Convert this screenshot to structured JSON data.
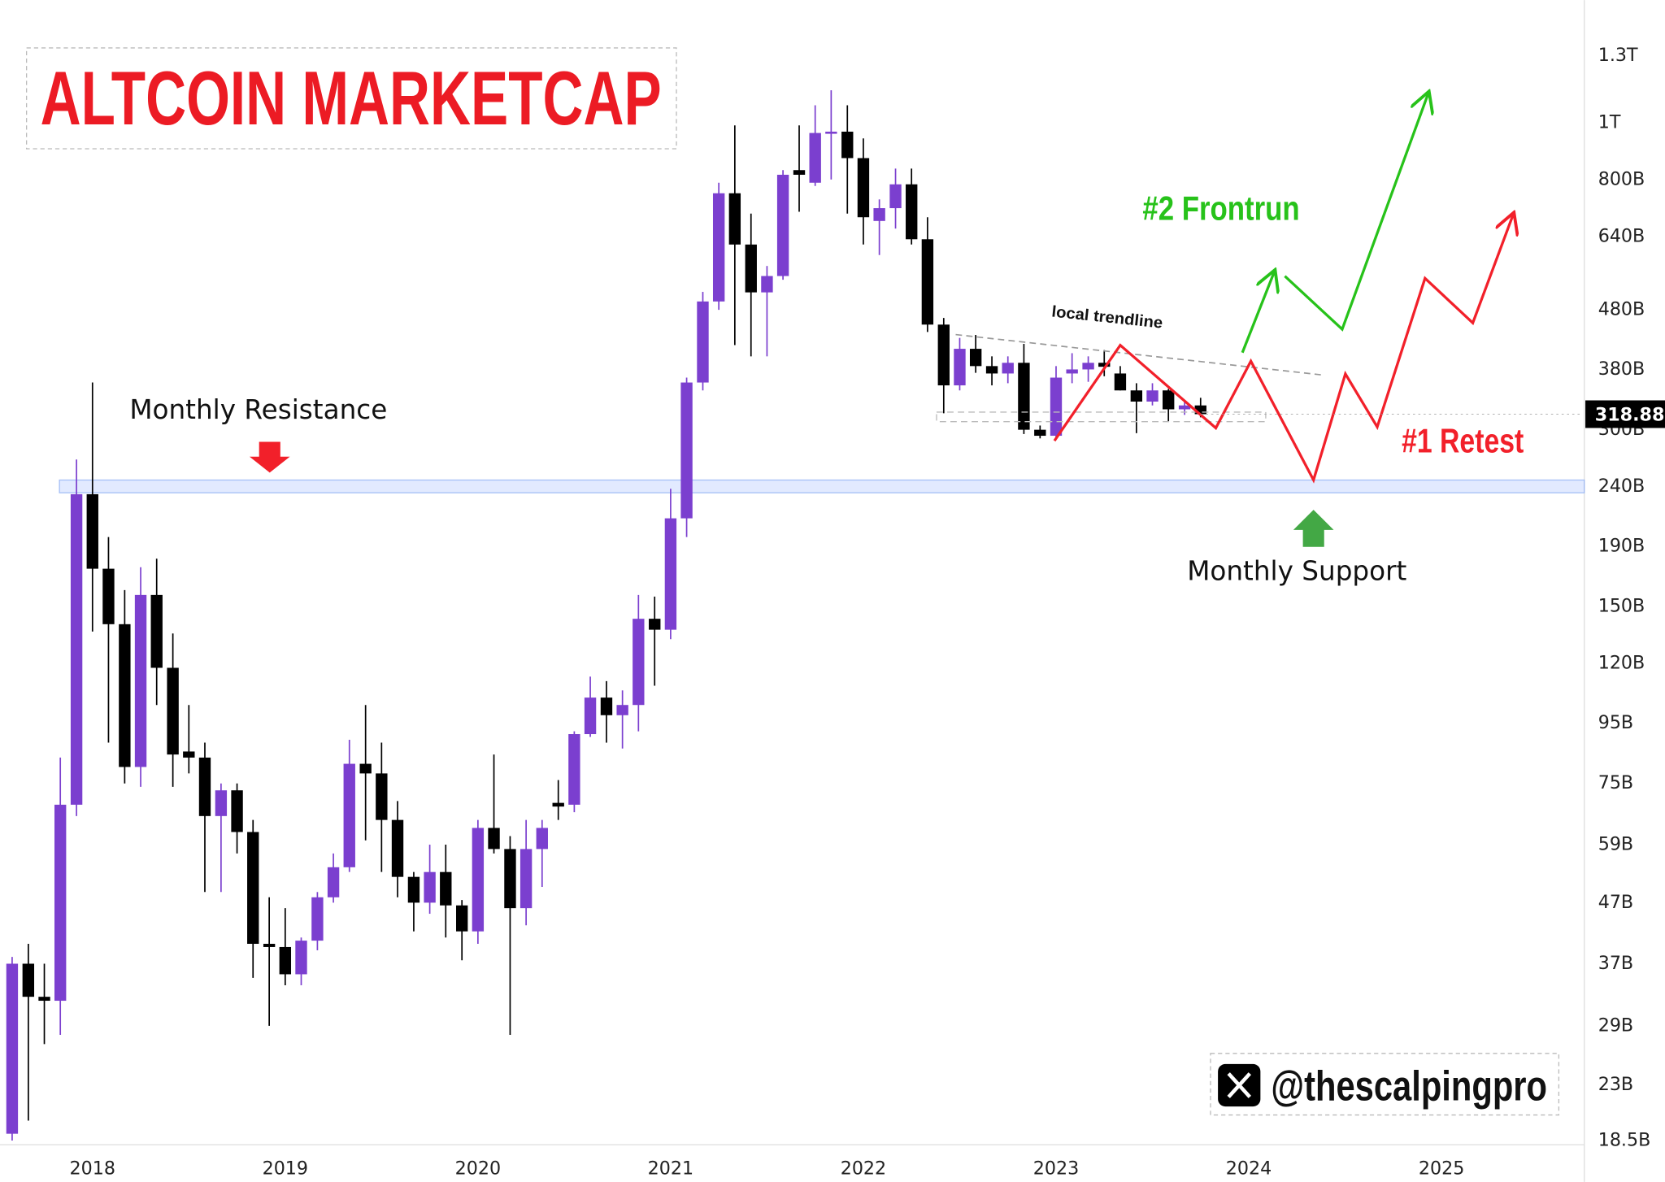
{
  "chart_data": {
    "type": "candlestick",
    "title": "ALTCOIN MARKETCAP",
    "annotations": [
      "Monthly Resistance",
      "Monthly Support",
      "#2 Frontrun",
      "#1 Retest",
      "local trendline"
    ],
    "watermark": "@thescalpingpro",
    "last_price": 318.88,
    "up_color": "#7b3fcf",
    "down_color": "#000000",
    "log_scale": true,
    "xlim": [
      2017.52,
      2025.73
    ],
    "xticks": [
      2018,
      2019,
      2020,
      2021,
      2022,
      2023,
      2024,
      2025
    ],
    "ylim": [
      18.2,
      1616
    ],
    "yticks": [
      {
        "value": 18.5,
        "label": "18.5B"
      },
      {
        "value": 23,
        "label": "23B"
      },
      {
        "value": 29,
        "label": "29B"
      },
      {
        "value": 37,
        "label": "37B"
      },
      {
        "value": 47,
        "label": "47B"
      },
      {
        "value": 59,
        "label": "59B"
      },
      {
        "value": 75,
        "label": "75B"
      },
      {
        "value": 95,
        "label": "95B"
      },
      {
        "value": 120,
        "label": "120B"
      },
      {
        "value": 150,
        "label": "150B"
      },
      {
        "value": 190,
        "label": "190B"
      },
      {
        "value": 240,
        "label": "240B"
      },
      {
        "value": 300,
        "label": "300B"
      },
      {
        "value": 380,
        "label": "380B"
      },
      {
        "value": 480,
        "label": "480B"
      },
      {
        "value": 640,
        "label": "640B"
      },
      {
        "value": 800,
        "label": "800B"
      },
      {
        "value": 1000,
        "label": "1T"
      },
      {
        "value": 1300,
        "label": "1.3T"
      }
    ],
    "x": [
      2017.583,
      2017.667,
      2017.75,
      2017.833,
      2017.917,
      2018.0,
      2018.083,
      2018.167,
      2018.25,
      2018.333,
      2018.417,
      2018.5,
      2018.583,
      2018.667,
      2018.75,
      2018.833,
      2018.917,
      2019.0,
      2019.083,
      2019.167,
      2019.25,
      2019.333,
      2019.417,
      2019.5,
      2019.583,
      2019.667,
      2019.75,
      2019.833,
      2019.917,
      2020.0,
      2020.083,
      2020.167,
      2020.25,
      2020.333,
      2020.417,
      2020.5,
      2020.583,
      2020.667,
      2020.75,
      2020.833,
      2020.917,
      2021.0,
      2021.083,
      2021.167,
      2021.25,
      2021.333,
      2021.417,
      2021.5,
      2021.583,
      2021.667,
      2021.75,
      2021.833,
      2021.917,
      2022.0,
      2022.083,
      2022.167,
      2022.25,
      2022.333,
      2022.417,
      2022.5,
      2022.583,
      2022.667,
      2022.75,
      2022.833,
      2022.917,
      2023.0,
      2023.083,
      2023.167,
      2023.25,
      2023.333,
      2023.417,
      2023.5,
      2023.583,
      2023.667,
      2023.75
    ],
    "open": [
      19,
      37,
      32.5,
      32,
      69,
      233,
      174,
      140,
      80,
      157,
      118,
      85,
      83,
      66,
      73,
      62,
      40,
      39.5,
      35.5,
      40.5,
      48,
      54,
      81,
      78,
      65,
      52,
      47,
      53,
      46.5,
      42,
      63,
      58,
      46,
      58,
      69.5,
      69,
      91,
      105,
      98,
      102,
      143,
      137,
      212,
      361,
      496,
      758,
      620,
      514,
      548,
      830,
      790,
      960,
      965,
      870,
      680,
      715,
      785,
      633,
      453,
      357,
      412,
      385,
      374,
      390,
      300,
      293,
      374,
      380,
      390,
      374,
      350,
      335,
      350,
      325,
      330
    ],
    "high": [
      38,
      40,
      37,
      83,
      267,
      361,
      197,
      160,
      175,
      181,
      135,
      102,
      88,
      75,
      75,
      65,
      48,
      46,
      41,
      49,
      57,
      89,
      102,
      88,
      70,
      53,
      59,
      59,
      47.5,
      65,
      84,
      61,
      65,
      65,
      76,
      92,
      114,
      112,
      108,
      157,
      156,
      238,
      368,
      515,
      790,
      989,
      700,
      570,
      830,
      989,
      1070,
      1135,
      1070,
      940,
      740,
      835,
      835,
      690,
      465,
      430,
      435,
      400,
      400,
      420,
      305,
      385,
      405,
      400,
      410,
      385,
      360,
      360,
      352,
      335,
      340
    ],
    "low": [
      18.5,
      20,
      27,
      28,
      66,
      136,
      88,
      75,
      74,
      102,
      74,
      78,
      49,
      49,
      57,
      35,
      29,
      34,
      34,
      39,
      47,
      53,
      60,
      53,
      48,
      42,
      45,
      41,
      37.5,
      40,
      57,
      28,
      43,
      50,
      65,
      67,
      90,
      88,
      86,
      92,
      110,
      132,
      197,
      350,
      480,
      418,
      400,
      400,
      540,
      705,
      780,
      800,
      700,
      620,
      595,
      660,
      620,
      440,
      320,
      350,
      375,
      357,
      360,
      295,
      290,
      290,
      360,
      362,
      370,
      350,
      296,
      330,
      310,
      318,
      315
    ],
    "close": [
      37,
      32.5,
      32,
      69,
      233,
      174,
      140,
      80,
      157,
      118,
      84,
      83,
      66,
      73,
      62,
      40,
      39.5,
      35.5,
      40.5,
      48,
      54,
      81,
      78,
      65,
      52,
      47,
      53,
      46.5,
      42,
      63,
      58,
      46,
      58,
      63,
      68.5,
      91,
      105,
      98,
      102,
      143,
      137,
      212,
      361,
      496,
      758,
      620,
      514,
      548,
      815,
      815,
      960,
      965,
      870,
      690,
      715,
      785,
      633,
      453,
      357,
      412,
      385,
      374,
      390,
      300,
      293,
      368,
      380,
      390,
      384,
      350,
      335,
      350,
      325,
      330,
      318.88
    ]
  }
}
